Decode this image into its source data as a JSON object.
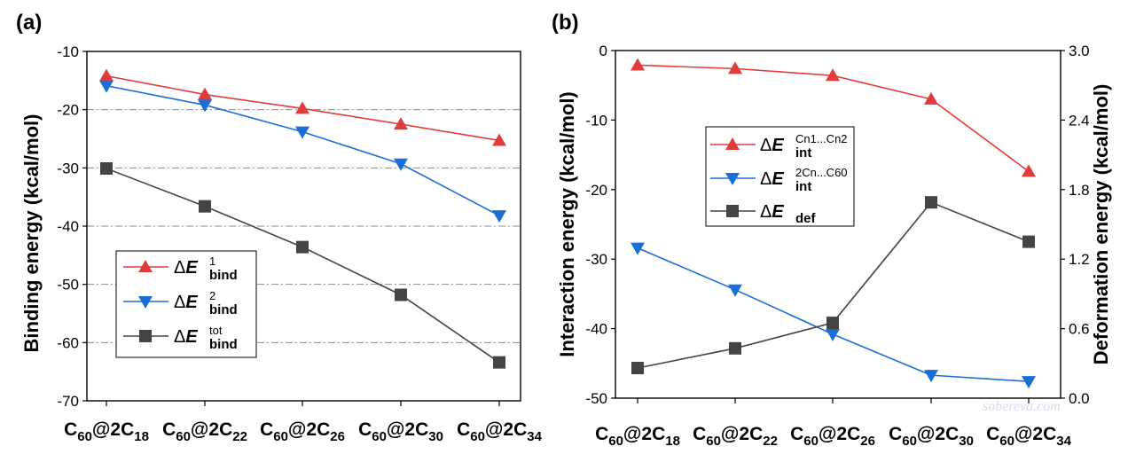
{
  "watermark": "sobereva.com",
  "colors": {
    "red": "#e03c3c",
    "blue": "#1a6ed8",
    "gray": "#444444"
  },
  "chart_data": [
    {
      "panel": "(a)",
      "type": "line",
      "ylabel": "Binding energy (kcal/mol)",
      "ylim": [
        -70,
        -10
      ],
      "yticks": [
        -10,
        -20,
        -30,
        -40,
        -50,
        -60,
        -70
      ],
      "grid": "horizontal dash-dot",
      "categories": [
        {
          "base": "C",
          "sub1": "60",
          "mid": "@2C",
          "sub2": "18"
        },
        {
          "base": "C",
          "sub1": "60",
          "mid": "@2C",
          "sub2": "22"
        },
        {
          "base": "C",
          "sub1": "60",
          "mid": "@2C",
          "sub2": "26"
        },
        {
          "base": "C",
          "sub1": "60",
          "mid": "@2C",
          "sub2": "30"
        },
        {
          "base": "C",
          "sub1": "60",
          "mid": "@2C",
          "sub2": "34"
        }
      ],
      "legend_position": "bottom-left",
      "series": [
        {
          "name": "ΔE1bind",
          "label_main": "ΔE",
          "label_sup": "1",
          "label_sub": "bind",
          "marker": "triangle-up",
          "color": "#e03c3c",
          "values": [
            -14.2,
            -17.4,
            -19.8,
            -22.5,
            -25.3
          ]
        },
        {
          "name": "ΔE2bind",
          "label_main": "ΔE",
          "label_sup": "2",
          "label_sub": "bind",
          "marker": "triangle-down",
          "color": "#1a6ed8",
          "values": [
            -15.9,
            -19.2,
            -23.8,
            -29.3,
            -38.2
          ]
        },
        {
          "name": "ΔEtotbind",
          "label_main": "ΔE",
          "label_sup": "tot",
          "label_sub": "bind",
          "marker": "square",
          "color": "#444444",
          "values": [
            -30.1,
            -36.6,
            -43.6,
            -51.8,
            -63.4
          ]
        }
      ]
    },
    {
      "panel": "(b)",
      "type": "line",
      "ylabel": "Interaction energy (kcal/mol)",
      "ylim": [
        -50,
        0
      ],
      "yticks": [
        0,
        -10,
        -20,
        -30,
        -40,
        -50
      ],
      "y2label": "Deformation energy (kcal/mol)",
      "y2lim": [
        0,
        3.0
      ],
      "y2ticks": [
        "0.0",
        "0.6",
        "1.2",
        "1.8",
        "2.4",
        "3.0"
      ],
      "categories": [
        {
          "base": "C",
          "sub1": "60",
          "mid": "@2C",
          "sub2": "18"
        },
        {
          "base": "C",
          "sub1": "60",
          "mid": "@2C",
          "sub2": "22"
        },
        {
          "base": "C",
          "sub1": "60",
          "mid": "@2C",
          "sub2": "26"
        },
        {
          "base": "C",
          "sub1": "60",
          "mid": "@2C",
          "sub2": "30"
        },
        {
          "base": "C",
          "sub1": "60",
          "mid": "@2C",
          "sub2": "34"
        }
      ],
      "legend_position": "upper-center",
      "series": [
        {
          "name": "ΔE int Cn1...Cn2",
          "label_main": "ΔE",
          "label_sup": "Cn1...Cn2",
          "label_sub": "int",
          "marker": "triangle-up",
          "color": "#e03c3c",
          "axis": "left",
          "values": [
            -2.1,
            -2.6,
            -3.6,
            -7.0,
            -17.4
          ]
        },
        {
          "name": "ΔE int 2Cn...C60",
          "label_main": "ΔE",
          "label_sup": "2Cn...C60",
          "label_sub": "int",
          "marker": "triangle-down",
          "color": "#1a6ed8",
          "axis": "left",
          "values": [
            -28.4,
            -34.4,
            -40.8,
            -46.7,
            -47.6
          ]
        },
        {
          "name": "ΔE def",
          "label_main": "ΔE",
          "label_sup": "",
          "label_sub": "def",
          "marker": "square",
          "color": "#444444",
          "axis": "right",
          "values": [
            0.26,
            0.43,
            0.65,
            1.69,
            1.35
          ]
        }
      ]
    }
  ]
}
